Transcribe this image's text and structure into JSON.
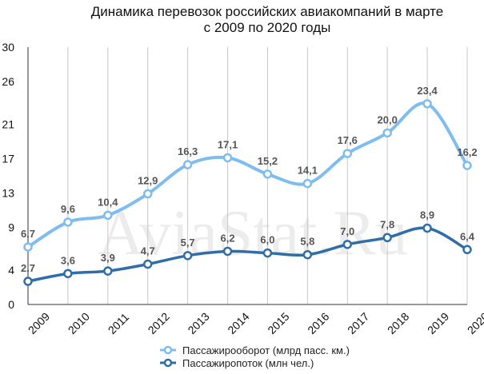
{
  "watermark": "AviaStat.Ru",
  "chart_data": {
    "type": "line",
    "title": "Динамика перевозок российских авиакомпаний в марте",
    "subtitle": "с 2009 по 2020 годы",
    "categories": [
      "2009",
      "2010",
      "2011",
      "2012",
      "2013",
      "2014",
      "2015",
      "2016",
      "2017",
      "2018",
      "2019",
      "2020"
    ],
    "ylim": [
      0,
      30
    ],
    "yticks": [
      "0",
      "4",
      "9",
      "13",
      "17",
      "21",
      "26",
      "30"
    ],
    "grid": "vertical",
    "legend_position": "bottom",
    "series": [
      {
        "name": "Пассажирооборот (млрд пасс. км.)",
        "color": "#7fbdf0",
        "values": [
          6.7,
          9.6,
          10.4,
          12.9,
          16.3,
          17.1,
          15.2,
          14.1,
          17.6,
          20.0,
          23.4,
          16.2
        ],
        "labels": [
          "6,7",
          "9,6",
          "10,4",
          "12,9",
          "16,3",
          "17,1",
          "15,2",
          "14,1",
          "17,6",
          "20,0",
          "23,4",
          "16,2"
        ]
      },
      {
        "name": "Пассажиропоток (млн чел.)",
        "color": "#2f6ea8",
        "values": [
          2.7,
          3.6,
          3.9,
          4.7,
          5.7,
          6.2,
          6.0,
          5.8,
          7.0,
          7.8,
          8.9,
          6.4
        ],
        "labels": [
          "2,7",
          "3,6",
          "3,9",
          "4,7",
          "5,7",
          "6,2",
          "6,0",
          "5,8",
          "7,0",
          "7,8",
          "8,9",
          "6,4"
        ]
      }
    ]
  }
}
